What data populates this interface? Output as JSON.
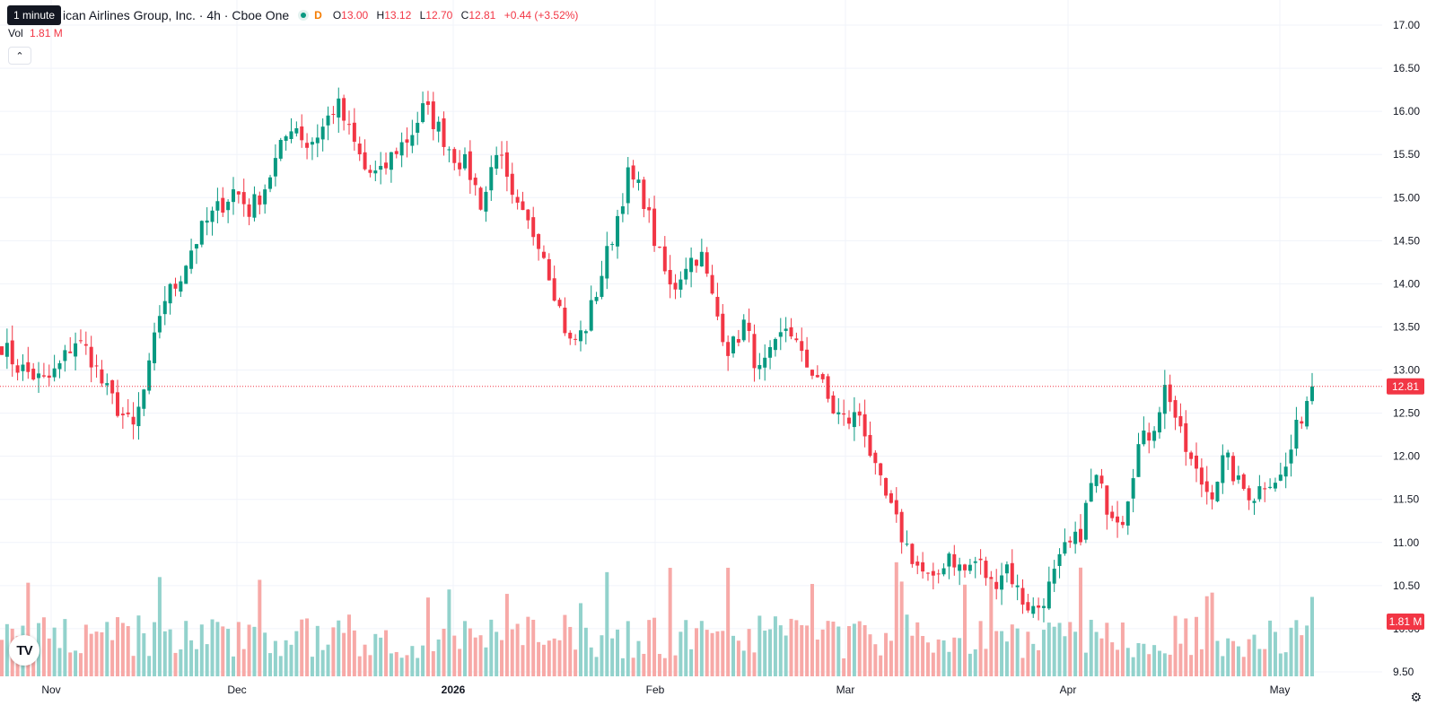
{
  "tooltip": "1 minute",
  "header": {
    "title": "ican Airlines Group, Inc. · 4h · Cboe One",
    "badge": "D",
    "ohlc": [
      {
        "k": "O",
        "v": "13.00"
      },
      {
        "k": "H",
        "v": "13.12"
      },
      {
        "k": "L",
        "v": "12.70"
      },
      {
        "k": "C",
        "v": "12.81"
      },
      {
        "k": "",
        "v": "+0.44 (+3.52%)"
      }
    ]
  },
  "volume": {
    "label": "Vol",
    "value": "1.81 M"
  },
  "last_price_label": "12.81",
  "last_volume_label": "1.81 M",
  "colors": {
    "up": "#089981",
    "down": "#f23645",
    "up_vol": "#92d2cc",
    "down_vol": "#f7a9a7",
    "grid": "#f0f3fa",
    "text": "#131722"
  },
  "logo": "TV",
  "chart_data": {
    "type": "candlestick",
    "y_ticks": [
      "17.00",
      "16.50",
      "16.00",
      "15.50",
      "15.00",
      "14.50",
      "14.00",
      "13.50",
      "13.00",
      "12.50",
      "12.00",
      "11.50",
      "11.00",
      "10.50",
      "10.00",
      "9.50"
    ],
    "x_ticks": [
      {
        "label": "Nov",
        "bold": false
      },
      {
        "label": "Dec",
        "bold": false
      },
      {
        "label": "2026",
        "bold": true
      },
      {
        "label": "Feb",
        "bold": false
      },
      {
        "label": "Mar",
        "bold": false
      },
      {
        "label": "Apr",
        "bold": false
      },
      {
        "label": "May",
        "bold": false
      }
    ],
    "ylim": [
      9.5,
      17.0
    ],
    "last_price": 12.81,
    "anchors": [
      13.3,
      13.05,
      12.95,
      12.85,
      13.05,
      13.35,
      13.2,
      12.8,
      12.55,
      12.3,
      12.9,
      13.8,
      14.0,
      14.4,
      14.7,
      14.9,
      15.1,
      14.85,
      15.1,
      15.5,
      15.9,
      15.6,
      15.8,
      16.1,
      15.7,
      15.3,
      15.25,
      15.55,
      15.7,
      16.05,
      15.8,
      15.5,
      15.35,
      14.9,
      15.6,
      14.95,
      14.7,
      14.5,
      13.9,
      13.3,
      13.45,
      14.0,
      14.6,
      15.25,
      15.05,
      14.4,
      13.9,
      14.25,
      14.35,
      13.7,
      13.2,
      13.55,
      12.95,
      13.2,
      13.55,
      13.1,
      12.95,
      12.55,
      12.4,
      12.5,
      11.8,
      11.4,
      11.0,
      10.7,
      10.5,
      10.9,
      10.65,
      10.8,
      10.5,
      10.75,
      10.35,
      10.2,
      10.5,
      10.9,
      11.05,
      11.8,
      11.4,
      11.3,
      12.1,
      12.3,
      12.85,
      12.2,
      11.8,
      11.55,
      12.0,
      11.65,
      11.55,
      11.75,
      11.75,
      12.35,
      12.84
    ]
  }
}
